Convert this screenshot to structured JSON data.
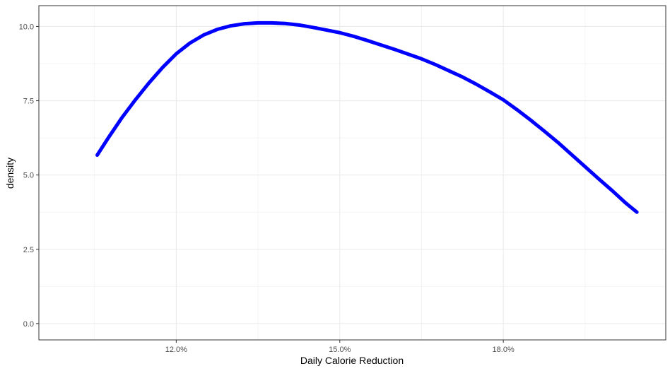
{
  "chart_data": {
    "type": "line",
    "xlabel": "Daily Calorie Reduction",
    "ylabel": "density",
    "x_ticks": [
      {
        "value": 0.12,
        "label": "12.0%"
      },
      {
        "value": 0.15,
        "label": "15.0%"
      },
      {
        "value": 0.18,
        "label": "18.0%"
      }
    ],
    "y_ticks": [
      {
        "value": 0.0,
        "label": "0.0"
      },
      {
        "value": 2.5,
        "label": "2.5"
      },
      {
        "value": 5.0,
        "label": "5.0"
      },
      {
        "value": 7.5,
        "label": "7.5"
      },
      {
        "value": 10.0,
        "label": "10.0"
      }
    ],
    "x_minor_ticks": [
      0.105,
      0.135,
      0.165,
      0.195
    ],
    "y_minor_ticks": [
      1.25,
      3.75,
      6.25,
      8.75
    ],
    "xlim": [
      0.0948,
      0.2098
    ],
    "ylim": [
      -0.55,
      10.7
    ],
    "grid": true,
    "series": [
      {
        "color": "#0000ff",
        "x": [
          0.1055,
          0.1075,
          0.11,
          0.1125,
          0.115,
          0.1175,
          0.12,
          0.1225,
          0.125,
          0.1275,
          0.13,
          0.1325,
          0.135,
          0.1375,
          0.14,
          0.1425,
          0.145,
          0.1475,
          0.15,
          0.1525,
          0.155,
          0.1575,
          0.16,
          0.1625,
          0.165,
          0.1675,
          0.17,
          0.1725,
          0.175,
          0.1775,
          0.18,
          0.1825,
          0.185,
          0.1875,
          0.19,
          0.1925,
          0.195,
          0.1975,
          0.2,
          0.2025,
          0.2045
        ],
        "y": [
          5.67,
          6.24,
          6.92,
          7.53,
          8.1,
          8.62,
          9.08,
          9.44,
          9.71,
          9.9,
          10.02,
          10.09,
          10.12,
          10.12,
          10.1,
          10.05,
          9.97,
          9.88,
          9.79,
          9.67,
          9.53,
          9.38,
          9.23,
          9.07,
          8.91,
          8.72,
          8.51,
          8.3,
          8.06,
          7.8,
          7.53,
          7.2,
          6.85,
          6.48,
          6.1,
          5.69,
          5.28,
          4.87,
          4.47,
          4.05,
          3.75
        ]
      }
    ]
  }
}
